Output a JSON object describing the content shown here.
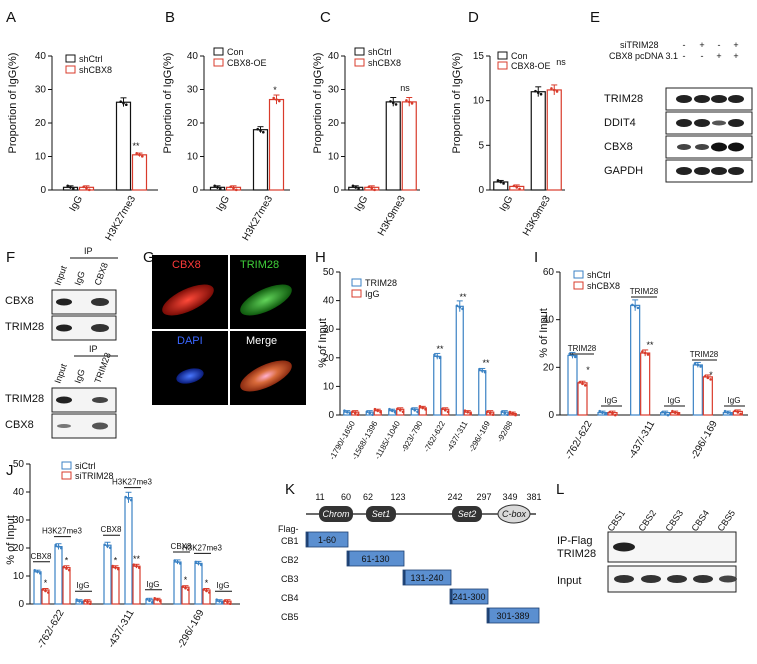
{
  "colors": {
    "ctrl": "#3b82c4",
    "treat": "#d93b2b",
    "construct": "#5b8fd0",
    "domain": "#333333"
  },
  "panelA": {
    "letter": "A",
    "ylabel": "Proportion of IgG(%)",
    "legend": [
      "shCtrl",
      "shCBX8"
    ],
    "sig": "**",
    "chart_data": {
      "type": "bar",
      "categories": [
        "IgG",
        "H3K27me3"
      ],
      "ylim": [
        0,
        40
      ],
      "yticks": [
        "0",
        "10",
        "20",
        "30",
        "40"
      ],
      "series": [
        {
          "name": "shCtrl",
          "values": [
            0.8,
            26.2
          ]
        },
        {
          "name": "shCBX8",
          "values": [
            0.8,
            10.5
          ]
        }
      ]
    }
  },
  "panelB": {
    "letter": "B",
    "ylabel": "Proportion of IgG(%)",
    "legend": [
      "Con",
      "CBX8-OE"
    ],
    "sig": "*",
    "chart_data": {
      "type": "bar",
      "categories": [
        "IgG",
        "H3K27me3"
      ],
      "ylim": [
        0,
        40
      ],
      "yticks": [
        "0",
        "10",
        "20",
        "30",
        "40"
      ],
      "series": [
        {
          "name": "Con",
          "values": [
            0.8,
            18
          ]
        },
        {
          "name": "CBX8-OE",
          "values": [
            0.8,
            27
          ]
        }
      ]
    }
  },
  "panelC": {
    "letter": "C",
    "ylabel": "Proportion of IgG(%)",
    "legend": [
      "shCtrl",
      "shCBX8"
    ],
    "sig": "ns",
    "chart_data": {
      "type": "bar",
      "categories": [
        "IgG",
        "H3K9me3"
      ],
      "ylim": [
        0,
        40
      ],
      "yticks": [
        "0",
        "10",
        "20",
        "30",
        "40"
      ],
      "series": [
        {
          "name": "shCtrl",
          "values": [
            0.8,
            26.3
          ]
        },
        {
          "name": "shCBX8",
          "values": [
            0.8,
            26.3
          ]
        }
      ]
    }
  },
  "panelD": {
    "letter": "D",
    "ylabel": "Proportion of IgG(%)",
    "legend": [
      "Con",
      "CBX8-OE"
    ],
    "sig": "ns",
    "chart_data": {
      "type": "bar",
      "categories": [
        "IgG",
        "H3K9me3"
      ],
      "ylim": [
        0,
        15
      ],
      "yticks": [
        "0",
        "5",
        "10",
        "15"
      ],
      "series": [
        {
          "name": "Con",
          "values": [
            0.9,
            11
          ]
        },
        {
          "name": "CBX8-OE",
          "values": [
            0.4,
            11.2
          ]
        }
      ]
    }
  },
  "panelE": {
    "letter": "E",
    "row1_label": "siTRIM28",
    "row1": [
      "-",
      "+",
      "-",
      "+"
    ],
    "row2_label": "CBX8 pcDNA 3.1",
    "row2": [
      "-",
      "-",
      "+",
      "+"
    ],
    "bands": [
      "TRIM28",
      "DDIT4",
      "CBX8",
      "GAPDH"
    ]
  },
  "panelF": {
    "letter": "F",
    "ip": "IP",
    "lanes_top": [
      "Input",
      "IgG",
      "CBX8"
    ],
    "bands_top": [
      "CBX8",
      "TRIM28"
    ],
    "lanes_bottom": [
      "Input",
      "IgG",
      "TRIM28"
    ],
    "bands_bottom": [
      "TRIM28",
      "CBX8"
    ]
  },
  "panelG": {
    "letter": "G",
    "labels": [
      "CBX8",
      "TRIM28",
      "DAPI",
      "Merge"
    ]
  },
  "panelH": {
    "letter": "H",
    "ylabel": "% of Input",
    "legend": [
      "TRIM28",
      "IgG"
    ],
    "sig": "**",
    "chart_data": {
      "type": "bar",
      "categories": [
        "-1790/-1650",
        "-1568/-1396",
        "-1185/-1040",
        "-923/-790",
        "-762/-622",
        "-437/-311",
        "-296/-169",
        "-92/88"
      ],
      "ylim": [
        0,
        50
      ],
      "yticks": [
        "0",
        "10",
        "20",
        "30",
        "40",
        "50"
      ],
      "series": [
        {
          "name": "TRIM28",
          "values": [
            1,
            1,
            1.5,
            2,
            20.5,
            38,
            15.5,
            1
          ]
        },
        {
          "name": "IgG",
          "values": [
            1,
            1.5,
            2,
            2.5,
            2,
            1,
            1,
            0.5
          ]
        }
      ]
    }
  },
  "panelI": {
    "letter": "I",
    "ylabel": "% of Input",
    "legend": [
      "shCtrl",
      "shCBX8"
    ],
    "group1": "TRIM28",
    "group2": "IgG",
    "sig1": "*",
    "sig2": "**",
    "chart_data": {
      "type": "bar",
      "categories": [
        "-762/-622",
        "-437/-311",
        "-296/-169"
      ],
      "ylim": [
        0,
        60
      ],
      "yticks": [
        "0",
        "20",
        "40",
        "60"
      ],
      "series": [
        {
          "name": "shCtrl TRIM28",
          "values": [
            25,
            46,
            21
          ]
        },
        {
          "name": "shCBX8 TRIM28",
          "values": [
            13.5,
            26,
            16
          ]
        },
        {
          "name": "shCtrl IgG",
          "values": [
            1,
            1,
            1
          ]
        },
        {
          "name": "shCBX8 IgG",
          "values": [
            1,
            1,
            1.5
          ]
        }
      ]
    }
  },
  "panelJ": {
    "letter": "J",
    "ylabel": "% of Input",
    "legend": [
      "siCtrl",
      "siTRIM28"
    ],
    "g_cbx8": "CBX8",
    "g_h3": "H3K27me3",
    "g_igg": "IgG",
    "sig1": "*",
    "sig2": "**",
    "chart_data": {
      "type": "bar",
      "categories": [
        "-762/-622",
        "-437/-311",
        "-296/-169"
      ],
      "ylim": [
        0,
        50
      ],
      "yticks": [
        "0",
        "10",
        "20",
        "30",
        "40",
        "50"
      ],
      "series": [
        {
          "name": "siCtrl CBX8",
          "values": [
            11.5,
            21,
            15
          ]
        },
        {
          "name": "siTRIM28 CBX8",
          "values": [
            5,
            13,
            6
          ]
        },
        {
          "name": "siCtrl H3K27me3",
          "values": [
            20.5,
            38,
            14.5
          ]
        },
        {
          "name": "siTRIM28 H3K27me3",
          "values": [
            13,
            13.5,
            5
          ]
        },
        {
          "name": "siCtrl IgG",
          "values": [
            1,
            1.5,
            1
          ]
        },
        {
          "name": "siTRIM28 IgG",
          "values": [
            1,
            1.5,
            1
          ]
        }
      ]
    }
  },
  "panelK": {
    "letter": "K",
    "positions": [
      "11",
      "60",
      "62",
      "123",
      "242",
      "297",
      "349",
      "381"
    ],
    "domains": [
      "Chrom",
      "Set1",
      "Set2",
      "C-box"
    ],
    "flag": "Flag-",
    "constructs": [
      {
        "name": "CB1",
        "range": "1-60"
      },
      {
        "name": "CB2",
        "range": "61-130"
      },
      {
        "name": "CB3",
        "range": "131-240"
      },
      {
        "name": "CB4",
        "range": "241-300"
      },
      {
        "name": "CB5",
        "range": "301-389"
      }
    ]
  },
  "panelL": {
    "letter": "L",
    "lanes": [
      "CBS1",
      "CBS2",
      "CBS3",
      "CBS4",
      "CBS5"
    ],
    "row1": "IP-Flag",
    "row1b": "TRIM28",
    "row2": "Input"
  }
}
